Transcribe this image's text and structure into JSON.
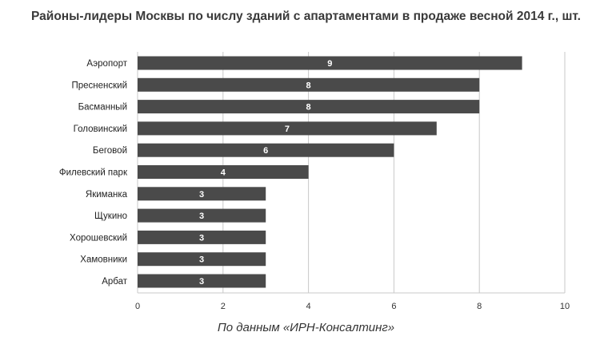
{
  "chart_data": {
    "type": "bar",
    "orientation": "horizontal",
    "title": "Районы-лидеры Москвы по числу зданий с апартаментами в продаже весной 2014 г., шт.",
    "categories": [
      "Аэропорт",
      "Пресненский",
      "Басманный",
      "Головинский",
      "Беговой",
      "Филевский парк",
      "Якиманка",
      "Щукино",
      "Хорошевский",
      "Хамовники",
      "Арбат"
    ],
    "values": [
      9,
      8,
      8,
      7,
      6,
      4,
      3,
      3,
      3,
      3,
      3
    ],
    "xlim": [
      0,
      10
    ],
    "xticks": [
      0,
      2,
      4,
      6,
      8,
      10
    ],
    "grid": "vertical",
    "bar_color": "#4a4a4a"
  },
  "source_note": "По данным «ИРН-Консалтинг»"
}
